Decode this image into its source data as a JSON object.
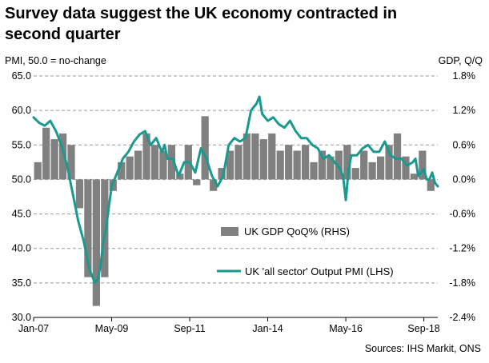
{
  "title": {
    "line1": "Survey data suggest the UK economy contracted in",
    "line2": "second quarter"
  },
  "source": "Sources: IHS Markit, ONS",
  "chart_data": {
    "type": "bar",
    "left_axis": {
      "label": "PMI, 50.0 = no-change",
      "range": [
        30,
        65
      ],
      "ticks": [
        "65.0",
        "60.0",
        "55.0",
        "50.0",
        "45.0",
        "40.0",
        "35.0",
        "30.0"
      ],
      "tick_values": [
        65,
        60,
        55,
        50,
        45,
        40,
        35,
        30
      ]
    },
    "right_axis": {
      "label": "GDP, Q/Q",
      "range": [
        -2.4,
        1.8
      ],
      "ticks": [
        "1.8%",
        "1.2%",
        "0.6%",
        "0.0%",
        "-0.6%",
        "-1.2%",
        "-1.8%",
        "-2.4%"
      ],
      "tick_values": [
        1.8,
        1.2,
        0.6,
        0.0,
        -0.6,
        -1.2,
        -1.8,
        -2.4
      ]
    },
    "x_axis": {
      "range_months": [
        0,
        145
      ],
      "tick_labels": [
        "Jan-07",
        "May-09",
        "Sep-11",
        "Jan-14",
        "May-16",
        "Sep-18"
      ],
      "tick_months": [
        0,
        28,
        56,
        84,
        112,
        140
      ]
    },
    "grid": "horizontal dashed",
    "legend": [
      {
        "label": "UK GDP QoQ% (RHS)",
        "color": "#808080",
        "kind": "bar"
      },
      {
        "label": "UK 'all sector' Output PMI (LHS)",
        "color": "#1a9a8f",
        "kind": "line"
      }
    ],
    "series": [
      {
        "name": "UK GDP QoQ% (RHS)",
        "axis": "right",
        "color": "#808080",
        "quarter_start_month": [
          0,
          3,
          6,
          9,
          12,
          15,
          18,
          21,
          24,
          27,
          30,
          33,
          36,
          39,
          42,
          45,
          48,
          51,
          54,
          57,
          60,
          63,
          66,
          69,
          72,
          75,
          78,
          81,
          84,
          87,
          90,
          93,
          96,
          99,
          102,
          105,
          108,
          111,
          114,
          117,
          120,
          123,
          126,
          129,
          132,
          135,
          138,
          141
        ],
        "values": [
          0.3,
          0.9,
          0.7,
          0.8,
          0.6,
          -0.5,
          -1.7,
          -2.2,
          -1.7,
          -0.2,
          0.3,
          0.4,
          0.5,
          0.8,
          0.6,
          0.5,
          0.6,
          0.1,
          0.6,
          -0.1,
          1.1,
          -0.2,
          0.2,
          0.5,
          0.6,
          0.8,
          0.8,
          0.7,
          0.8,
          0.5,
          0.6,
          0.5,
          0.6,
          0.3,
          0.5,
          0.4,
          0.5,
          0.6,
          0.2,
          0.5,
          0.3,
          0.4,
          0.6,
          0.8,
          0.4,
          0.1,
          0.5,
          -0.2
        ]
      },
      {
        "name": "UK 'all sector' Output PMI (LHS)",
        "axis": "left",
        "color": "#1a9a8f",
        "x_months": [
          0,
          2,
          4,
          6,
          8,
          10,
          12,
          14,
          16,
          18,
          20,
          22,
          23,
          24,
          25,
          26,
          27,
          28,
          30,
          32,
          34,
          36,
          38,
          40,
          42,
          44,
          46,
          47,
          48,
          50,
          52,
          54,
          56,
          58,
          60,
          62,
          64,
          66,
          68,
          70,
          72,
          74,
          76,
          78,
          80,
          81,
          82,
          84,
          86,
          88,
          90,
          92,
          94,
          96,
          98,
          100,
          102,
          104,
          106,
          108,
          110,
          111,
          112,
          113,
          114,
          116,
          118,
          120,
          122,
          124,
          126,
          128,
          130,
          132,
          134,
          136,
          137,
          138,
          140,
          141,
          142,
          143,
          144,
          145
        ],
        "values": [
          59.0,
          58.2,
          57.8,
          58.5,
          57.0,
          55.0,
          52.0,
          48.0,
          44.0,
          41.0,
          37.0,
          35.0,
          35.5,
          37.5,
          41.0,
          43.0,
          46.0,
          49.0,
          51.0,
          53.0,
          54.0,
          55.5,
          56.5,
          57.0,
          55.0,
          56.0,
          54.0,
          55.0,
          53.0,
          53.0,
          50.5,
          52.5,
          52.5,
          51.0,
          54.5,
          53.0,
          50.5,
          49.0,
          50.5,
          55.0,
          56.0,
          55.5,
          56.0,
          60.0,
          61.0,
          62.0,
          59.5,
          58.5,
          59.0,
          58.0,
          57.5,
          58.5,
          57.0,
          56.0,
          56.0,
          55.0,
          54.5,
          53.0,
          53.5,
          52.5,
          51.5,
          50.5,
          47.0,
          51.5,
          53.5,
          53.5,
          54.5,
          55.0,
          54.0,
          54.0,
          55.5,
          53.5,
          53.0,
          53.0,
          52.0,
          52.5,
          53.0,
          50.5,
          51.5,
          50.0,
          50.0,
          51.0,
          49.5,
          49.0
        ]
      }
    ]
  }
}
